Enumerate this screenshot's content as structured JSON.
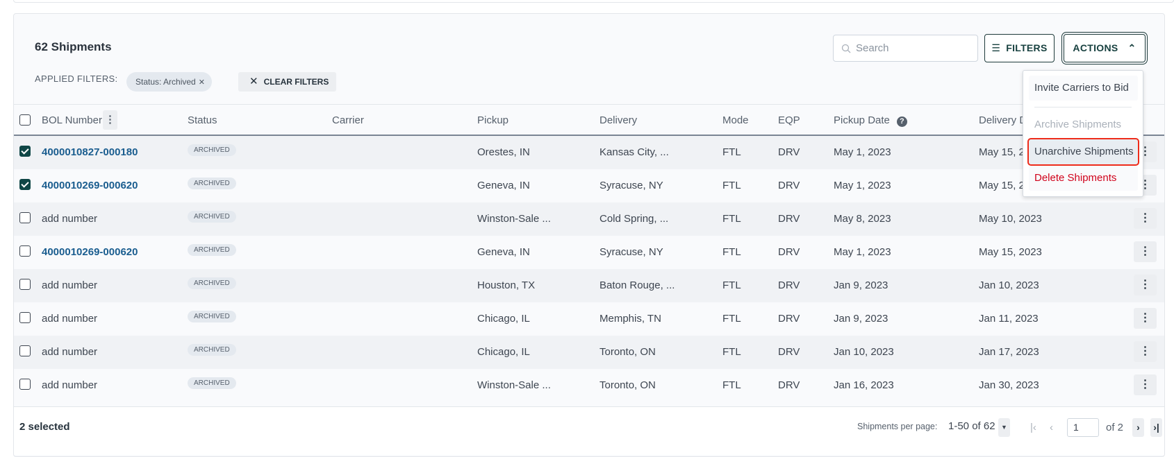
{
  "header": {
    "title": "62 Shipments",
    "applied_filters_label": "APPLIED FILTERS:",
    "filter_chip": "Status: Archived",
    "clear_filters": "CLEAR FILTERS"
  },
  "toolbar": {
    "search_placeholder": "Search",
    "filters": "FILTERS",
    "actions": "ACTIONS"
  },
  "actions_menu": {
    "items": [
      {
        "label": "Invite Carriers to Bid",
        "state": "enabled"
      },
      {
        "label": "Archive Shipments",
        "state": "disabled"
      },
      {
        "label": "Unarchive Shipments",
        "state": "highlighted"
      },
      {
        "label": "Delete Shipments",
        "state": "destructive"
      }
    ]
  },
  "columns": [
    "BOL Number",
    "Status",
    "Carrier",
    "Pickup",
    "Delivery",
    "Mode",
    "EQP",
    "Pickup Date",
    "Delivery Date"
  ],
  "rows": [
    {
      "checked": true,
      "bol": "4000010827-000180",
      "status": "ARCHIVED",
      "carrier": "",
      "pickup": "Orestes, IN",
      "delivery": "Kansas City, ...",
      "mode": "FTL",
      "eqp": "DRV",
      "pickup_date": "May 1, 2023",
      "delivery_date": "May 15, 2023"
    },
    {
      "checked": true,
      "bol": "4000010269-000620",
      "status": "ARCHIVED",
      "carrier": "",
      "pickup": "Geneva, IN",
      "delivery": "Syracuse, NY",
      "mode": "FTL",
      "eqp": "DRV",
      "pickup_date": "May 1, 2023",
      "delivery_date": "May 15, 2023"
    },
    {
      "checked": false,
      "bol": "add number",
      "status": "ARCHIVED",
      "carrier": "",
      "pickup": "Winston-Sale ...",
      "delivery": "Cold Spring, ...",
      "mode": "FTL",
      "eqp": "DRV",
      "pickup_date": "May 8, 2023",
      "delivery_date": "May 10, 2023"
    },
    {
      "checked": false,
      "bol": "4000010269-000620",
      "status": "ARCHIVED",
      "carrier": "",
      "pickup": "Geneva, IN",
      "delivery": "Syracuse, NY",
      "mode": "FTL",
      "eqp": "DRV",
      "pickup_date": "May 1, 2023",
      "delivery_date": "May 15, 2023"
    },
    {
      "checked": false,
      "bol": "add number",
      "status": "ARCHIVED",
      "carrier": "",
      "pickup": "Houston, TX",
      "delivery": "Baton Rouge, ...",
      "mode": "FTL",
      "eqp": "DRV",
      "pickup_date": "Jan 9, 2023",
      "delivery_date": "Jan 10, 2023"
    },
    {
      "checked": false,
      "bol": "add number",
      "status": "ARCHIVED",
      "carrier": "",
      "pickup": "Chicago, IL",
      "delivery": "Memphis, TN",
      "mode": "FTL",
      "eqp": "DRV",
      "pickup_date": "Jan 9, 2023",
      "delivery_date": "Jan 11, 2023"
    },
    {
      "checked": false,
      "bol": "add number",
      "status": "ARCHIVED",
      "carrier": "",
      "pickup": "Chicago, IL",
      "delivery": "Toronto, ON",
      "mode": "FTL",
      "eqp": "DRV",
      "pickup_date": "Jan 10, 2023",
      "delivery_date": "Jan 17, 2023"
    },
    {
      "checked": false,
      "bol": "add number",
      "status": "ARCHIVED",
      "carrier": "",
      "pickup": "Winston-Sale ...",
      "delivery": "Toronto, ON",
      "mode": "FTL",
      "eqp": "DRV",
      "pickup_date": "Jan 16, 2023",
      "delivery_date": "Jan 30, 2023"
    }
  ],
  "footer": {
    "selected": "2 selected",
    "per_page_label": "Shipments per page:",
    "range": "1-50 of 62",
    "page": "1",
    "of_pages": "of 2"
  },
  "colors": {
    "accent": "#0f4646",
    "link": "#1a5d8f",
    "danger": "#d0021b",
    "highlight_outline": "#ee2b1a"
  }
}
